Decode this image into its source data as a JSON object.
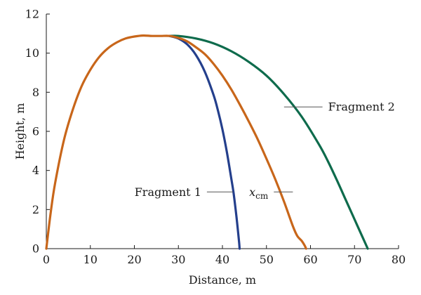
{
  "chart_data": {
    "type": "line",
    "title": "",
    "xlabel": "Distance, m",
    "ylabel": "Height, m",
    "xlim": [
      0,
      80
    ],
    "ylim": [
      0,
      12
    ],
    "x_ticks": [
      0,
      10,
      20,
      30,
      40,
      50,
      60,
      70,
      80
    ],
    "y_ticks": [
      0,
      2,
      4,
      6,
      8,
      10,
      12
    ],
    "x_tick_labels": [
      "0",
      "10",
      "20",
      "30",
      "40",
      "50",
      "60",
      "70",
      "80"
    ],
    "y_tick_labels": [
      "0",
      "2",
      "4",
      "6",
      "8",
      "10",
      "12"
    ],
    "grid": false,
    "series": [
      {
        "name": "x_cm",
        "color": "#c8661a",
        "x": [
          0,
          1,
          2,
          4,
          6,
          8,
          10,
          12,
          14,
          16,
          18,
          20,
          22,
          24,
          26,
          28,
          30,
          32,
          34,
          36,
          38,
          40,
          42,
          44,
          46,
          48,
          50,
          52,
          54,
          56,
          57,
          58,
          58.7,
          59
        ],
        "y": [
          0,
          1.85,
          3.35,
          5.55,
          7.1,
          8.3,
          9.15,
          9.8,
          10.25,
          10.55,
          10.75,
          10.85,
          10.9,
          10.88,
          10.88,
          10.88,
          10.78,
          10.6,
          10.3,
          9.95,
          9.45,
          8.85,
          8.15,
          7.35,
          6.5,
          5.6,
          4.6,
          3.55,
          2.4,
          1.15,
          0.65,
          0.4,
          0.15,
          0
        ]
      },
      {
        "name": "Fragment 1",
        "color": "#243f8c",
        "x": [
          28,
          30,
          32,
          34,
          36,
          38,
          39,
          40,
          41,
          42,
          42.5,
          43,
          43.3,
          43.6,
          43.8,
          43.9
        ],
        "y": [
          10.88,
          10.75,
          10.45,
          9.9,
          9.05,
          7.85,
          7.05,
          6.1,
          4.95,
          3.6,
          2.9,
          2.0,
          1.4,
          0.75,
          0.3,
          0
        ]
      },
      {
        "name": "Fragment 2",
        "color": "#0e6b4c",
        "x": [
          28,
          30,
          34,
          38,
          42,
          46,
          50,
          54,
          58,
          62,
          64,
          66,
          68,
          70,
          72,
          73
        ],
        "y": [
          10.88,
          10.88,
          10.75,
          10.5,
          10.1,
          9.55,
          8.85,
          7.9,
          6.75,
          5.3,
          4.45,
          3.5,
          2.5,
          1.5,
          0.5,
          0
        ]
      }
    ],
    "annotations": [
      {
        "series": "Fragment 2",
        "text": "Fragment 2",
        "at": [
          54,
          7.25
        ],
        "text_at": [
          64,
          7.25
        ],
        "anchor": "start"
      },
      {
        "series": "Fragment 1",
        "text": "Fragment 1",
        "at": [
          42.4,
          2.9
        ],
        "text_at": [
          35.2,
          2.9
        ],
        "anchor": "end"
      },
      {
        "series": "x_cm",
        "text_main": "x",
        "text_sub": "cm",
        "at": [
          56,
          2.9
        ],
        "text_at": [
          50.4,
          2.9
        ],
        "anchor": "end"
      }
    ]
  }
}
